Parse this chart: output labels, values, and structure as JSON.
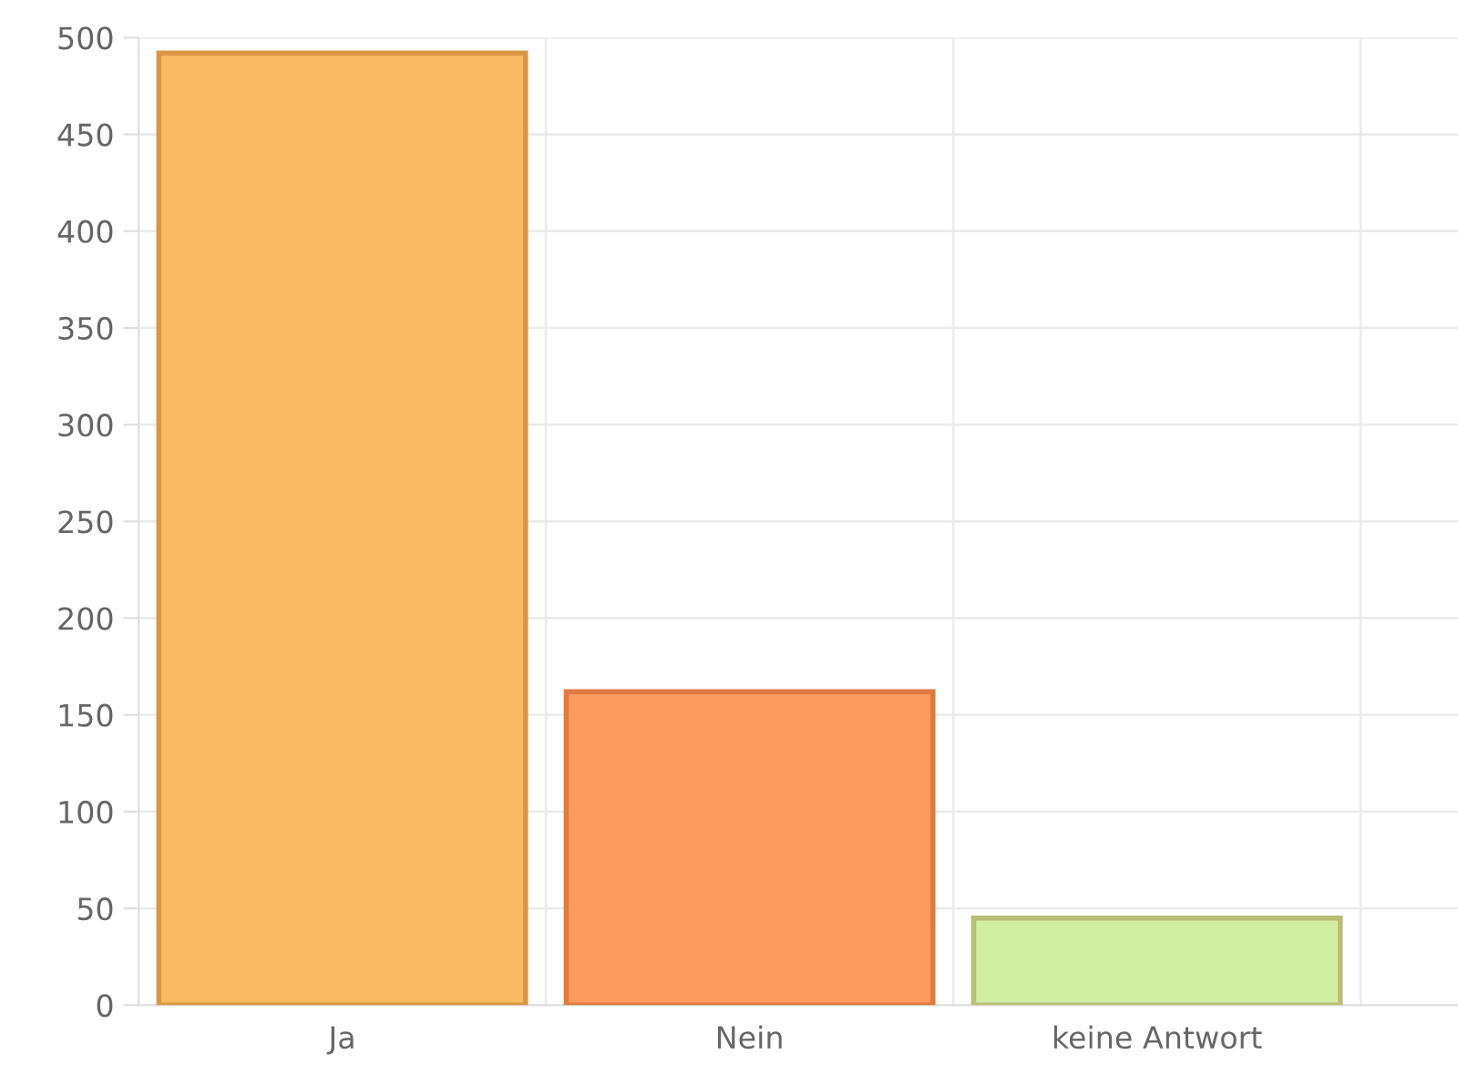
{
  "chart_data": {
    "type": "bar",
    "categories": [
      "Ja",
      "Nein",
      "keine Antwort"
    ],
    "values": [
      492,
      162,
      45
    ],
    "colors": [
      "#f8bb63",
      "#fd9a5e",
      "#d2eea3"
    ],
    "ylim": [
      0,
      500
    ],
    "yticks": [
      0,
      50,
      100,
      150,
      200,
      250,
      300,
      350,
      400,
      450,
      500
    ],
    "grid": true,
    "legend": false
  }
}
